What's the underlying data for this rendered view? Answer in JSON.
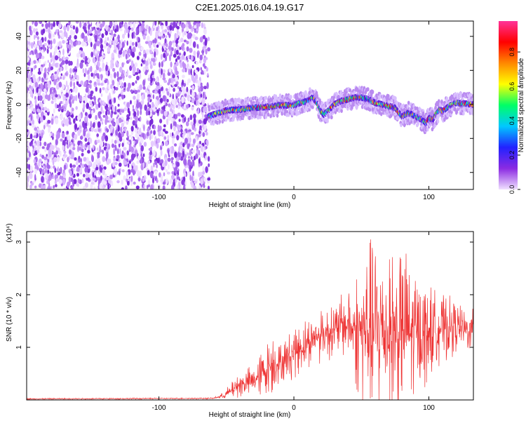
{
  "title": "C2E1.2025.016.04.19.G17",
  "chart_data": [
    {
      "type": "heatmap",
      "xlabel": "Height of straight line (km)",
      "ylabel": "Frequency (Hz)",
      "xlim": [
        -198,
        133
      ],
      "ylim": [
        -50,
        49
      ],
      "xticks": [
        -100,
        0,
        100
      ],
      "xtick_labels": [
        "-100",
        "0",
        "100"
      ],
      "yticks": [
        -40,
        -20,
        0,
        20,
        40
      ],
      "ytick_labels": [
        "-40",
        "-20",
        "0",
        "20",
        "40"
      ],
      "noise_region_x": [
        -198,
        -63
      ],
      "ridge": {
        "x": [
          -63,
          -50,
          -40,
          -30,
          -20,
          -10,
          0,
          5,
          10,
          14,
          17,
          20,
          22,
          25,
          30,
          35,
          40,
          45,
          50,
          55,
          60,
          65,
          70,
          75,
          78,
          80,
          85,
          90,
          95,
          98,
          100,
          103,
          105,
          108,
          110,
          115,
          120,
          125,
          133
        ],
        "freq": [
          -7,
          -3.5,
          -3,
          -2,
          -1.5,
          -0.5,
          -0.5,
          1,
          2,
          4,
          1,
          -4,
          -6,
          -4,
          0,
          2,
          3,
          4,
          4,
          3,
          1,
          0,
          -1,
          -2,
          -5,
          -7,
          -5,
          -7,
          -9,
          -11,
          -8,
          -9,
          -6,
          -3,
          -4,
          -1,
          1,
          0.5,
          0
        ]
      },
      "colorbar": {
        "label": "Normalized spectral amplitude",
        "range": [
          0.0,
          0.98
        ],
        "ticks": [
          0.0,
          0.2,
          0.4,
          0.6,
          0.8
        ],
        "tick_labels": [
          "0.0",
          "0.2",
          "0.4",
          "0.6",
          "0.8"
        ],
        "colors": [
          "#f0e0ff",
          "#8b2be2",
          "#2222ff",
          "#00c8ff",
          "#00ff66",
          "#ffff00",
          "#ff8800",
          "#ff0000",
          "#ff3399"
        ]
      }
    },
    {
      "type": "line",
      "xlabel": "Height of straight line (km)",
      "ylabel": "SNR (10 * v/v)",
      "scale_label": "(x10⁴)",
      "xlim": [
        -198,
        133
      ],
      "ylim": [
        0,
        3.2
      ],
      "xticks": [
        -100,
        0,
        100
      ],
      "xtick_labels": [
        "-100",
        "0",
        "100"
      ],
      "yticks": [
        1,
        2,
        3
      ],
      "ytick_labels": [
        "1",
        "2",
        "3"
      ],
      "color": "#ee3333",
      "envelope": {
        "x": [
          -198,
          -60,
          -52,
          -45,
          -40,
          -30,
          -20,
          -15,
          -12,
          -5,
          0,
          10,
          20,
          30,
          40,
          45,
          50,
          55,
          60,
          65,
          70,
          75,
          80,
          85,
          90,
          95,
          100,
          110,
          120,
          125,
          130,
          133
        ],
        "mean": [
          0.02,
          0.03,
          0.08,
          0.2,
          0.3,
          0.35,
          0.6,
          0.75,
          0.7,
          0.8,
          0.9,
          1.1,
          1.25,
          1.35,
          1.45,
          1.35,
          1.3,
          1.3,
          1.35,
          1.4,
          1.35,
          1.3,
          1.3,
          1.25,
          1.3,
          1.3,
          1.3,
          1.35,
          1.4,
          1.35,
          1.3,
          1.35
        ],
        "amp": [
          0.01,
          0.01,
          0.05,
          0.15,
          0.2,
          0.25,
          0.4,
          0.55,
          0.3,
          0.35,
          0.4,
          0.4,
          0.4,
          0.45,
          0.5,
          0.9,
          1.1,
          1.4,
          1.5,
          1.5,
          1.45,
          1.4,
          1.35,
          1.2,
          1.0,
          0.9,
          0.7,
          0.5,
          0.4,
          0.35,
          0.3,
          0.3
        ]
      }
    }
  ]
}
